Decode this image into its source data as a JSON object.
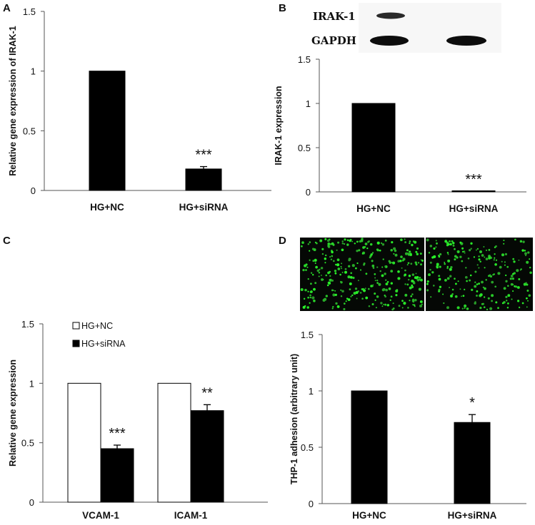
{
  "panels": [
    {
      "letter": "A"
    },
    {
      "letter": "B",
      "blot_labels": [
        "IRAK-1",
        "GAPDH"
      ]
    },
    {
      "letter": "C"
    },
    {
      "letter": "D"
    }
  ],
  "chart_data": [
    {
      "type": "bar",
      "panel": "A",
      "categories": [
        "HG+NC",
        "HG+siRNA"
      ],
      "series": [
        {
          "values": [
            1.0,
            0.18
          ],
          "errors": [
            0,
            0.02
          ],
          "color": "#000000"
        }
      ],
      "significance": [
        "",
        "***"
      ],
      "ylabel": "Relative gene expression of IRAK-1",
      "ylim": [
        0,
        1.5
      ],
      "yticks": [
        0,
        0.5,
        1,
        1.5
      ],
      "ytick_labels": [
        "0",
        "0.5",
        "1",
        "1.5"
      ]
    },
    {
      "type": "bar",
      "panel": "B",
      "categories": [
        "HG+NC",
        "HG+siRNA"
      ],
      "series": [
        {
          "values": [
            1.0,
            0.01
          ],
          "errors": [
            0,
            0
          ],
          "color": "#000000"
        }
      ],
      "significance": [
        "",
        "***"
      ],
      "ylabel": "IRAK-1 expression",
      "ylim": [
        0,
        1.5
      ],
      "yticks": [
        0,
        0.5,
        1,
        1.5
      ],
      "ytick_labels": [
        "0",
        "0.5",
        "1",
        "1.5"
      ]
    },
    {
      "type": "bar",
      "panel": "C",
      "categories": [
        "VCAM-1",
        "ICAM-1"
      ],
      "series": [
        {
          "name": "HG+NC",
          "values": [
            1.0,
            1.0
          ],
          "errors": [
            0,
            0
          ],
          "color": "#ffffff"
        },
        {
          "name": "HG+siRNA",
          "values": [
            0.45,
            0.77
          ],
          "errors": [
            0.03,
            0.05
          ],
          "color": "#000000"
        }
      ],
      "significance": [
        "***",
        "**"
      ],
      "ylabel": "Relative gene expression",
      "ylim": [
        0,
        1.5
      ],
      "yticks": [
        0,
        0.5,
        1,
        1.5
      ],
      "ytick_labels": [
        "0",
        "0.5",
        "1",
        "1.5"
      ],
      "legend": "top-left"
    },
    {
      "type": "bar",
      "panel": "D",
      "categories": [
        "HG+NC",
        "HG+siRNA"
      ],
      "series": [
        {
          "values": [
            1.0,
            0.72
          ],
          "errors": [
            0,
            0.07
          ],
          "color": "#000000"
        }
      ],
      "significance": [
        "",
        "*"
      ],
      "ylabel": "THP-1 adhesion (arbitrary unit)",
      "ylim": [
        0,
        1.5
      ],
      "yticks": [
        0,
        0.5,
        1,
        1.5
      ],
      "ytick_labels": [
        "0",
        "0.5",
        "1",
        "1.5"
      ]
    }
  ]
}
